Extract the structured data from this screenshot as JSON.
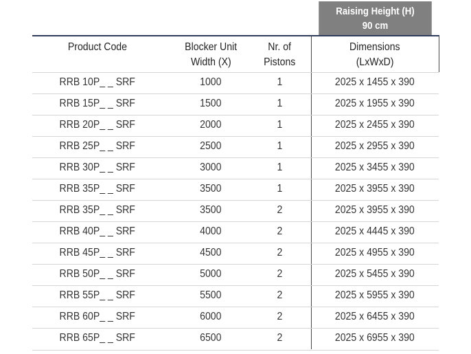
{
  "group_header": {
    "line1": "Raising Height (H)",
    "line2": "90 cm"
  },
  "columns": [
    {
      "line1": "Product Code",
      "line2": ""
    },
    {
      "line1": "Blocker Unit",
      "line2": "Width (X)"
    },
    {
      "line1": "Nr. of",
      "line2": "Pistons"
    },
    {
      "line1": "Dimensions",
      "line2": "(LxWxD)"
    }
  ],
  "rows": [
    [
      "RRB 10P_ _ SRF",
      "1000",
      "1",
      "2025 x 1455 x 390"
    ],
    [
      "RRB 15P_ _ SRF",
      "1500",
      "1",
      "2025 x 1955 x 390"
    ],
    [
      "RRB 20P_ _ SRF",
      "2000",
      "1",
      "2025 x 2455 x 390"
    ],
    [
      "RRB 25P_ _ SRF",
      "2500",
      "1",
      "2025 x 2955 x 390"
    ],
    [
      "RRB 30P_ _ SRF",
      "3000",
      "1",
      "2025 x 3455 x 390"
    ],
    [
      "RRB 35P_ _ SRF",
      "3500",
      "1",
      "2025 x 3955 x 390"
    ],
    [
      "RRB 35P_ _ SRF",
      "3500",
      "2",
      "2025 x 3955 x 390"
    ],
    [
      "RRB 40P_ _ SRF",
      "4000",
      "2",
      "2025 x 4445 x 390"
    ],
    [
      "RRB 45P_ _ SRF",
      "4500",
      "2",
      "2025 x 4955 x 390"
    ],
    [
      "RRB 50P_ _ SRF",
      "5000",
      "2",
      "2025 x 5455 x 390"
    ],
    [
      "RRB 55P_ _ SRF",
      "5500",
      "2",
      "2025 x 5955 x 390"
    ],
    [
      "RRB 60P_ _ SRF",
      "6000",
      "2",
      "2025 x 6455 x 390"
    ],
    [
      "RRB 65P_ _ SRF",
      "6500",
      "2",
      "2025 x 6955 x 390"
    ]
  ],
  "colors": {
    "header_bg": "#808080",
    "rule": "#2e3a5c"
  }
}
